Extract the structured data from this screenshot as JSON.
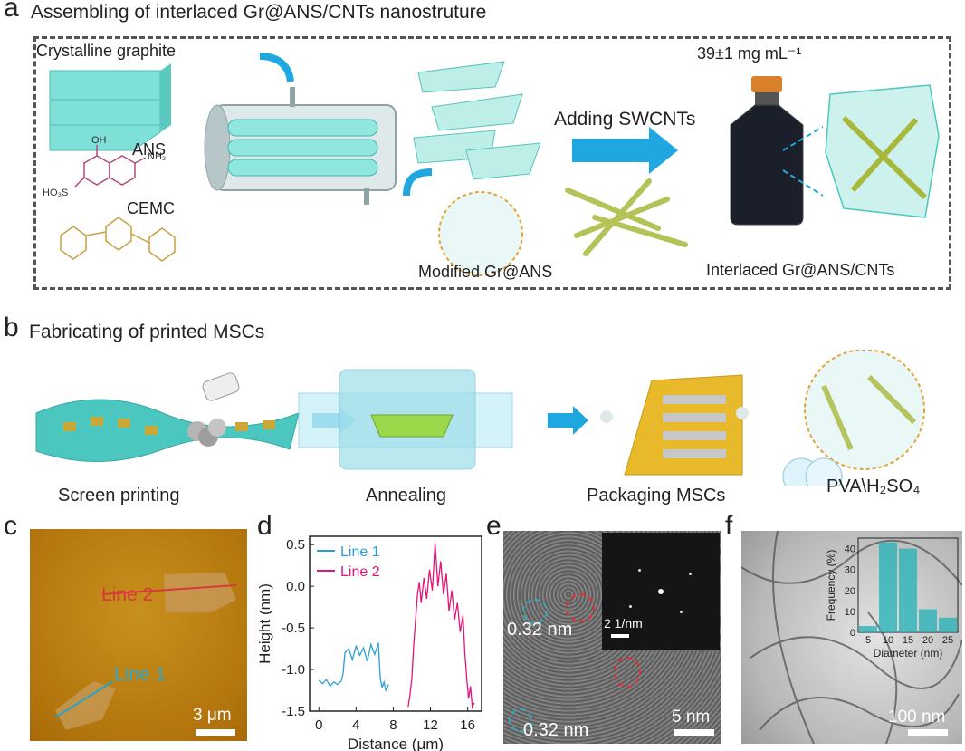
{
  "panel_a": {
    "letter": "a",
    "title": "Assembling of interlaced Gr@ANS/CNTs nanostruture",
    "crystalline_graphite": "Crystalline graphite",
    "ans": "ANS",
    "oh": "OH",
    "nh2": "NH₂",
    "ho3s": "HO₃S",
    "cemc": "CEMC",
    "concentration": "39±1 mg mL⁻¹",
    "adding": "Adding SWCNTs",
    "modified": "Modified Gr@ANS",
    "interlaced": "Interlaced Gr@ANS/CNTs"
  },
  "panel_b": {
    "letter": "b",
    "title": "Fabricating of printed MSCs",
    "steps": [
      "Screen printing",
      "Annealing",
      "Packaging  MSCs"
    ],
    "electrolyte": "PVA\\H₂SO₄"
  },
  "panel_c": {
    "letter": "c",
    "line2": "Line 2",
    "line1": "Line 1",
    "scale": "3 μm"
  },
  "panel_e": {
    "letter": "e",
    "d1": "0.32 nm",
    "d2": "0.32 nm",
    "inset_scale": "2 1/nm",
    "scale": "5 nm"
  },
  "panel_f": {
    "letter": "f",
    "scale": "100 nm"
  },
  "chart_data": [
    {
      "panel": "d",
      "type": "line",
      "xlabel": "Distance (μm)",
      "ylabel": "Height (nm)",
      "xlim": [
        -1,
        17.5
      ],
      "ylim": [
        -1.5,
        0.6
      ],
      "xticks": [
        0,
        4,
        8,
        12,
        16
      ],
      "yticks": [
        -1.5,
        -1.0,
        -0.5,
        0.0,
        0.5
      ],
      "legend_position": "top-left",
      "series": [
        {
          "name": "Line 1",
          "color": "#2a9fd6",
          "x": [
            0,
            0.4,
            0.8,
            1.2,
            1.6,
            2.0,
            2.4,
            2.6,
            2.8,
            3.2,
            3.6,
            4.0,
            4.4,
            4.8,
            5.2,
            5.6,
            6.0,
            6.4,
            6.6,
            6.8,
            7.0,
            7.2,
            7.5
          ],
          "y": [
            -1.13,
            -1.17,
            -1.12,
            -1.2,
            -1.15,
            -1.18,
            -1.14,
            -1.05,
            -0.8,
            -0.75,
            -0.88,
            -0.72,
            -0.83,
            -0.74,
            -0.9,
            -0.7,
            -0.82,
            -0.68,
            -1.1,
            -1.22,
            -1.15,
            -1.25,
            -1.18
          ]
        },
        {
          "name": "Line 2",
          "color": "#e0157a",
          "x": [
            9.6,
            9.8,
            10.0,
            10.2,
            10.4,
            10.6,
            10.8,
            11.0,
            11.3,
            11.6,
            11.9,
            12.2,
            12.5,
            12.8,
            13.1,
            13.4,
            13.7,
            14.0,
            14.3,
            14.6,
            14.9,
            15.2,
            15.5,
            15.7,
            15.9,
            16.1,
            16.3,
            16.5,
            16.7
          ],
          "y": [
            -1.45,
            -1.3,
            -1.1,
            -0.7,
            -0.4,
            -0.1,
            0.05,
            -0.2,
            0.1,
            -0.15,
            0.2,
            -0.05,
            0.52,
            0.0,
            0.3,
            -0.1,
            0.15,
            -0.3,
            -0.05,
            -0.4,
            -0.2,
            -0.55,
            -0.35,
            -0.8,
            -1.1,
            -1.35,
            -1.2,
            -1.45,
            -1.4
          ]
        }
      ]
    },
    {
      "panel": "f-inset",
      "type": "bar",
      "xlabel": "Diameter (nm)",
      "ylabel": "Frequency (%)",
      "categories": [
        "5",
        "10",
        "15",
        "20",
        "25"
      ],
      "values": [
        3,
        43,
        40,
        11,
        7
      ],
      "ylim": [
        0,
        45
      ],
      "yticks": [
        0,
        10,
        20,
        30,
        40
      ],
      "color": "#2cb3b8"
    }
  ]
}
